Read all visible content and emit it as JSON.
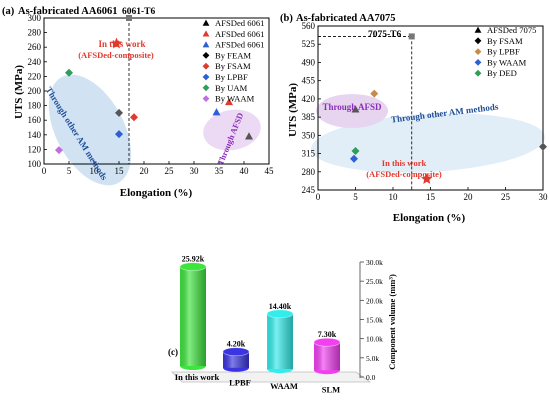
{
  "chart_data": [
    {
      "type": "scatter",
      "panel_label": "(a)",
      "title": "As-fabricated AA6061",
      "xlabel": "Elongation (%)",
      "ylabel": "UTS (MPa)",
      "xlim": [
        0,
        45
      ],
      "ylim": [
        100,
        300
      ],
      "xticks": [
        0,
        5,
        10,
        15,
        20,
        25,
        30,
        35,
        40,
        45
      ],
      "yticks": [
        100,
        120,
        140,
        160,
        180,
        200,
        220,
        240,
        260,
        280,
        300
      ],
      "reference": {
        "label": "6061-T6",
        "x": 17,
        "y": 300
      },
      "annotations": [
        "In this work",
        "(AFSDed-composite)",
        "Through other AM methods",
        "Through AFSD"
      ],
      "legend_position": "top-right",
      "legend": [
        {
          "label": "AFSDed 6061",
          "marker": "triangle",
          "color": "#000000"
        },
        {
          "label": "AFSDed 6061",
          "marker": "triangle",
          "color": "#e03a2f"
        },
        {
          "label": "AFSDed 6061",
          "marker": "triangle",
          "color": "#2f5fd6"
        },
        {
          "label": "By FEAM",
          "marker": "diamond",
          "color": "#000000"
        },
        {
          "label": "By FSAM",
          "marker": "diamond",
          "color": "#e03a2f"
        },
        {
          "label": "By LPBF",
          "marker": "diamond",
          "color": "#2f5fd6"
        },
        {
          "label": "By UAM",
          "marker": "diamond",
          "color": "#2e9e5b"
        },
        {
          "label": "By WAAM",
          "marker": "diamond",
          "color": "#c06ee0"
        }
      ],
      "points": [
        {
          "series": "In this work",
          "marker": "star",
          "color": "#e03a2f",
          "x": 14.5,
          "y": 265
        },
        {
          "series": "AFSDed 6061 (black)",
          "marker": "triangle",
          "color": "#555555",
          "x": 41,
          "y": 138
        },
        {
          "series": "AFSDed 6061 (red)",
          "marker": "triangle",
          "color": "#e03a2f",
          "x": 37,
          "y": 185
        },
        {
          "series": "AFSDed 6061 (blue)",
          "marker": "triangle",
          "color": "#2f5fd6",
          "x": 34.5,
          "y": 171
        },
        {
          "series": "By FEAM",
          "marker": "diamond",
          "color": "#555555",
          "x": 15,
          "y": 170
        },
        {
          "series": "By FSAM",
          "marker": "diamond",
          "color": "#e03a2f",
          "x": 18,
          "y": 164
        },
        {
          "series": "By LPBF",
          "marker": "diamond",
          "color": "#2f5fd6",
          "x": 15,
          "y": 141
        },
        {
          "series": "By UAM",
          "marker": "diamond",
          "color": "#2e9e5b",
          "x": 5,
          "y": 225
        },
        {
          "series": "By WAAM",
          "marker": "diamond",
          "color": "#c06ee0",
          "x": 3,
          "y": 119
        }
      ]
    },
    {
      "type": "scatter",
      "panel_label": "(b)",
      "title": "As-fabricated AA7075",
      "xlabel": "Elongation (%)",
      "ylabel": "UTS (MPa)",
      "xlim": [
        0,
        30
      ],
      "ylim": [
        245,
        560
      ],
      "xticks": [
        0,
        5,
        10,
        15,
        20,
        25,
        30
      ],
      "yticks": [
        245,
        280,
        315,
        350,
        385,
        420,
        455,
        490,
        525,
        560
      ],
      "reference": {
        "label": "7075-T6",
        "x": 12.5,
        "y": 540
      },
      "annotations": [
        "Through AFSD",
        "Through other AM methods",
        "In this work",
        "(AFSDed-composite)"
      ],
      "legend_position": "top-right",
      "legend": [
        {
          "label": "AFSDed 7075",
          "marker": "triangle",
          "color": "#000000"
        },
        {
          "label": "By FSAM",
          "marker": "diamond",
          "color": "#000000"
        },
        {
          "label": "By LPBF",
          "marker": "diamond",
          "color": "#c98a4b"
        },
        {
          "label": "By WAAM",
          "marker": "diamond",
          "color": "#2f5fd6"
        },
        {
          "label": "By DED",
          "marker": "diamond",
          "color": "#2e9e5b"
        }
      ],
      "points": [
        {
          "series": "In this work",
          "marker": "star",
          "color": "#e03a2f",
          "x": 14.5,
          "y": 266
        },
        {
          "series": "AFSDed 7075",
          "marker": "triangle",
          "color": "#555555",
          "x": 5,
          "y": 400
        },
        {
          "series": "By FSAM",
          "marker": "diamond",
          "color": "#555555",
          "x": 30,
          "y": 328
        },
        {
          "series": "By LPBF",
          "marker": "diamond",
          "color": "#c98a4b",
          "x": 7.5,
          "y": 430
        },
        {
          "series": "By WAAM",
          "marker": "diamond",
          "color": "#2f5fd6",
          "x": 4.8,
          "y": 305
        },
        {
          "series": "By DED",
          "marker": "diamond",
          "color": "#2e9e5b",
          "x": 5,
          "y": 320
        }
      ]
    },
    {
      "type": "bar",
      "panel_label": "(c)",
      "ylabel": "Component volume (mm³)",
      "ylim": [
        0,
        30000
      ],
      "yticks": [
        "0.0",
        "5.0k",
        "10.0k",
        "15.0k",
        "20.0k",
        "25.0k",
        "30.0k"
      ],
      "tick_values": [
        0,
        5000,
        10000,
        15000,
        20000,
        25000,
        30000
      ],
      "categories": [
        "In this work",
        "LPBF",
        "WAAM",
        "SLM"
      ],
      "values": [
        25920,
        4200,
        14400,
        7300
      ],
      "data_labels": [
        "25.92k",
        "4.20k",
        "14.40k",
        "7.30k"
      ],
      "colors": [
        "#3ee53e",
        "#3a35e0",
        "#33ecec",
        "#f23ff2"
      ]
    }
  ]
}
